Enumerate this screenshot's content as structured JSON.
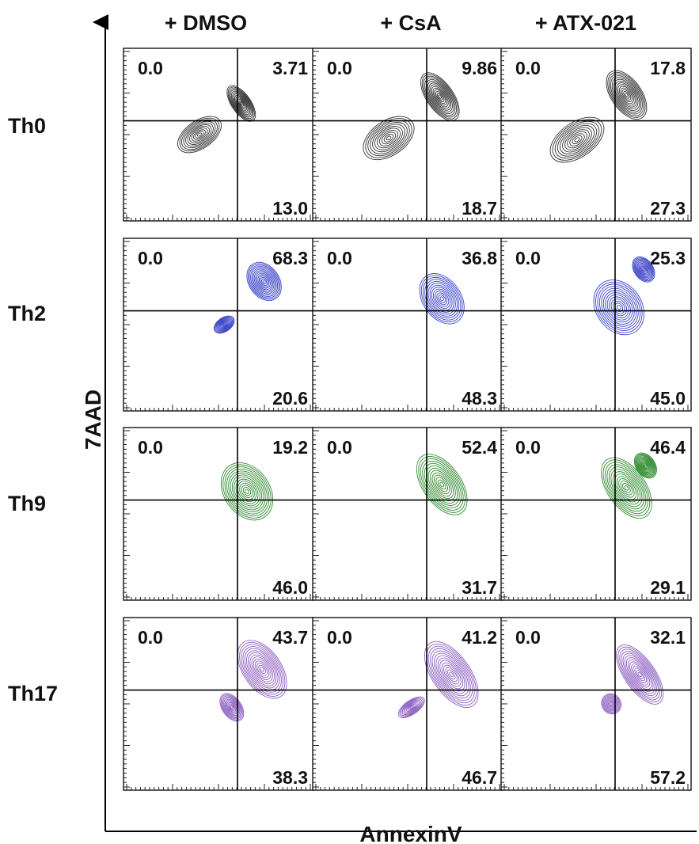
{
  "chart_data": {
    "type": "contour",
    "xlabel": "AnnexinV",
    "ylabel": "7AAD",
    "columns": [
      "+ DMSO",
      "+ CsA",
      "+ ATX-021"
    ],
    "rows": [
      {
        "name": "Th0",
        "color": "#333333",
        "values": [
          {
            "ul": "0.0",
            "ur": "3.71",
            "lr": "13.0"
          },
          {
            "ul": "0.0",
            "ur": "9.86",
            "lr": "18.7"
          },
          {
            "ul": "0.0",
            "ur": "17.8",
            "lr": "27.3"
          }
        ]
      },
      {
        "name": "Th2",
        "color": "#3b44c8",
        "values": [
          {
            "ul": "0.0",
            "ur": "68.3",
            "lr": "20.6"
          },
          {
            "ul": "0.0",
            "ur": "36.8",
            "lr": "48.3"
          },
          {
            "ul": "0.0",
            "ur": "25.3",
            "lr": "45.0"
          }
        ]
      },
      {
        "name": "Th9",
        "color": "#2e8b2e",
        "values": [
          {
            "ul": "0.0",
            "ur": "19.2",
            "lr": "46.0"
          },
          {
            "ul": "0.0",
            "ur": "52.4",
            "lr": "31.7"
          },
          {
            "ul": "0.0",
            "ur": "46.4",
            "lr": "29.1"
          }
        ]
      },
      {
        "name": "Th17",
        "color": "#8e5fc2",
        "values": [
          {
            "ul": "0.0",
            "ur": "43.7",
            "lr": "38.3"
          },
          {
            "ul": "0.0",
            "ur": "41.2",
            "lr": "46.7"
          },
          {
            "ul": "0.0",
            "ur": "32.1",
            "lr": "57.2"
          }
        ]
      }
    ]
  }
}
